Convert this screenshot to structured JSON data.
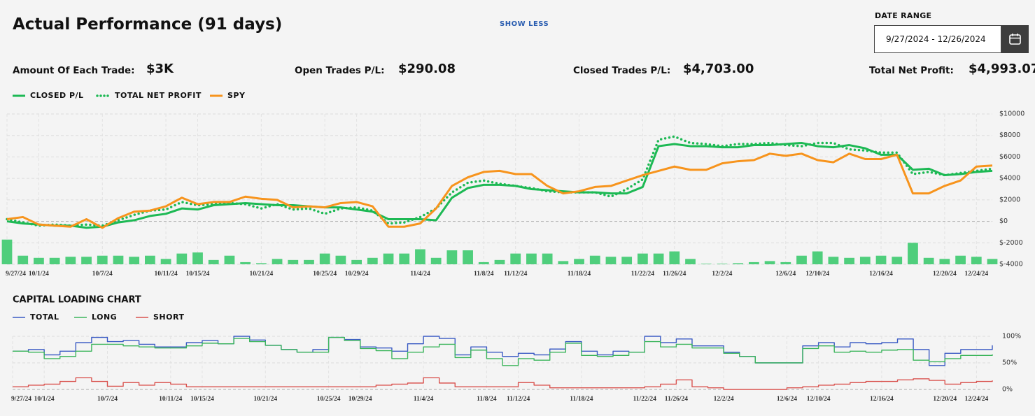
{
  "header": {
    "title": "Actual Performance (91 days)",
    "toggle": "SHOW LESS",
    "date_range_label": "DATE RANGE",
    "date_range": "9/27/2024 - 12/26/2024"
  },
  "stats": [
    {
      "label": "Amount Of Each Trade:",
      "value": "$3K"
    },
    {
      "label": "Open Trades P/L:",
      "value": "$290.08"
    },
    {
      "label": "Closed Trades P/L:",
      "value": "$4,703.00"
    },
    {
      "label": "Total Net Profit:",
      "value": "$4,993.07"
    }
  ],
  "chart_data": [
    {
      "type": "line",
      "categories": [
        "9/27/24",
        null,
        "10/1/24",
        null,
        null,
        null,
        "10/7/24",
        null,
        null,
        null,
        "10/11/24",
        null,
        "10/15/24",
        null,
        null,
        null,
        "10/21/24",
        null,
        null,
        null,
        "10/25/24",
        null,
        "10/29/24",
        null,
        null,
        null,
        "11/4/24",
        null,
        null,
        null,
        "11/8/24",
        null,
        "11/12/24",
        null,
        null,
        null,
        "11/18/24",
        null,
        null,
        null,
        "11/22/24",
        null,
        "11/26/24",
        null,
        null,
        "12/2/24",
        null,
        null,
        null,
        "12/6/24",
        null,
        "12/10/24",
        null,
        null,
        null,
        "12/16/24",
        null,
        null,
        null,
        "12/20/24",
        null,
        "12/24/24",
        null
      ],
      "series": [
        {
          "name": "CLOSED P/L",
          "color": "#1db954",
          "values": [
            0,
            -200,
            -300,
            -400,
            -400,
            -600,
            -500,
            -100,
            100,
            500,
            700,
            1200,
            1100,
            1500,
            1600,
            1700,
            1600,
            1500,
            1500,
            1400,
            1300,
            1300,
            1100,
            900,
            200,
            200,
            200,
            100,
            2200,
            3100,
            3400,
            3400,
            3300,
            3000,
            2900,
            2800,
            2700,
            2700,
            2600,
            2600,
            3200,
            7000,
            7200,
            7000,
            7000,
            6900,
            6900,
            7100,
            7100,
            7200,
            7300,
            7000,
            6900,
            7100,
            6800,
            6200,
            6200,
            4800,
            4900,
            4300,
            4400,
            4600,
            4700
          ]
        },
        {
          "name": "TOTAL NET PROFIT",
          "color": "#1db954",
          "dash": "dotted",
          "values": [
            200,
            -100,
            -400,
            -300,
            -400,
            -300,
            -400,
            100,
            600,
            1000,
            1100,
            1800,
            1500,
            1600,
            1700,
            1600,
            1200,
            1600,
            1100,
            1200,
            700,
            1200,
            1300,
            1000,
            -200,
            -100,
            400,
            1200,
            2700,
            3600,
            3800,
            3500,
            3300,
            3100,
            2800,
            2700,
            2700,
            2700,
            2300,
            3000,
            3900,
            7600,
            7900,
            7300,
            7200,
            7000,
            7200,
            7200,
            7300,
            7100,
            7000,
            7300,
            7300,
            6700,
            6600,
            6400,
            6400,
            4400,
            4600,
            4300,
            4500,
            4700,
            4900
          ]
        },
        {
          "name": "SPY",
          "color": "#f7941d",
          "values": [
            200,
            400,
            -300,
            -400,
            -500,
            200,
            -600,
            300,
            900,
            1000,
            1400,
            2200,
            1600,
            1800,
            1800,
            2300,
            2100,
            2000,
            1300,
            1400,
            1300,
            1700,
            1800,
            1400,
            -500,
            -500,
            -200,
            1200,
            3300,
            4100,
            4600,
            4700,
            4400,
            4400,
            3300,
            2600,
            2800,
            3200,
            3300,
            3800,
            4300,
            4700,
            5100,
            4800,
            4800,
            5400,
            5600,
            5700,
            6300,
            6100,
            6300,
            5700,
            5500,
            6300,
            5800,
            5800,
            6200,
            2600,
            2600,
            3300,
            3800,
            5100,
            5200
          ]
        },
        {
          "type": "bar",
          "color": "#4fce7c",
          "values": [
            -1700,
            -3200,
            -3400,
            -3400,
            -3300,
            -3300,
            -3200,
            -3200,
            -3300,
            -3200,
            -3500,
            -3000,
            -2900,
            -3600,
            -3200,
            -3800,
            -3900,
            -3500,
            -3600,
            -3600,
            -3000,
            -3200,
            -3600,
            -3400,
            -3000,
            -3000,
            -2600,
            -3400,
            -2700,
            -2700,
            -3800,
            -3600,
            -3000,
            -3000,
            -3000,
            -3700,
            -3500,
            -3200,
            -3300,
            -3300,
            -3000,
            -3000,
            -2800,
            -3500,
            -3950,
            -3950,
            -3900,
            -3800,
            -3700,
            -3800,
            -3200,
            -2800,
            -3300,
            -3400,
            -3300,
            -3200,
            -3300,
            -2000,
            -3400,
            -3500,
            -3200,
            -3300,
            -3500
          ]
        }
      ],
      "ylim": [
        -4000,
        10000
      ],
      "yticks": [
        {
          "value": 10000,
          "label": "$10000"
        },
        {
          "value": 8000,
          "label": "$8000"
        },
        {
          "value": 6000,
          "label": "$6000"
        },
        {
          "value": 4000,
          "label": "$4000"
        },
        {
          "value": 2000,
          "label": "$2000"
        },
        {
          "value": 0,
          "label": "$0"
        },
        {
          "value": -2000,
          "label": "$-2000"
        },
        {
          "value": -4000,
          "label": "$-4000"
        }
      ],
      "grid": true
    },
    {
      "type": "line",
      "step": true,
      "title": "CAPITAL LOADING CHART",
      "categories": [
        "9/27/24",
        null,
        "10/1/24",
        null,
        null,
        null,
        "10/7/24",
        null,
        null,
        null,
        "10/11/24",
        null,
        "10/15/24",
        null,
        null,
        null,
        "10/21/24",
        null,
        null,
        null,
        "10/25/24",
        null,
        "10/29/24",
        null,
        null,
        null,
        "11/4/24",
        null,
        null,
        null,
        "11/8/24",
        null,
        "11/12/24",
        null,
        null,
        null,
        "11/18/24",
        null,
        null,
        null,
        "11/22/24",
        null,
        "11/26/24",
        null,
        null,
        "12/2/24",
        null,
        null,
        null,
        "12/6/24",
        null,
        "12/10/24",
        null,
        null,
        null,
        "12/16/24",
        null,
        null,
        null,
        "12/20/24",
        null,
        "12/24/24",
        null
      ],
      "series": [
        {
          "name": "TOTAL",
          "color": "#3b5bc4",
          "values": [
            72,
            75,
            65,
            72,
            88,
            98,
            90,
            92,
            85,
            80,
            80,
            88,
            92,
            86,
            100,
            93,
            83,
            75,
            70,
            75,
            98,
            94,
            80,
            78,
            72,
            86,
            100,
            96,
            65,
            80,
            70,
            62,
            68,
            65,
            76,
            90,
            72,
            65,
            72,
            70,
            100,
            88,
            95,
            82,
            82,
            70,
            62,
            50,
            50,
            50,
            82,
            88,
            80,
            88,
            86,
            88,
            95,
            75,
            45,
            68,
            75,
            75,
            83
          ]
        },
        {
          "name": "LONG",
          "color": "#3cb55c",
          "values": [
            72,
            70,
            58,
            62,
            72,
            85,
            85,
            82,
            80,
            78,
            78,
            82,
            87,
            86,
            96,
            90,
            83,
            75,
            70,
            70,
            98,
            92,
            77,
            73,
            58,
            70,
            80,
            85,
            60,
            74,
            58,
            45,
            58,
            55,
            70,
            87,
            64,
            62,
            64,
            70,
            90,
            80,
            85,
            78,
            78,
            68,
            62,
            50,
            50,
            50,
            77,
            82,
            70,
            72,
            70,
            74,
            75,
            55,
            52,
            58,
            64,
            64,
            66
          ]
        },
        {
          "name": "SHORT",
          "color": "#d9534f",
          "values": [
            5,
            8,
            10,
            15,
            22,
            15,
            6,
            13,
            8,
            13,
            10,
            5,
            5,
            5,
            5,
            5,
            5,
            5,
            5,
            5,
            5,
            5,
            5,
            8,
            10,
            12,
            22,
            12,
            5,
            5,
            5,
            5,
            13,
            8,
            3,
            3,
            3,
            3,
            3,
            3,
            5,
            10,
            18,
            5,
            3,
            0,
            0,
            0,
            0,
            3,
            5,
            8,
            10,
            13,
            15,
            15,
            18,
            20,
            17,
            10,
            13,
            15,
            17
          ]
        }
      ],
      "ylim": [
        0,
        100
      ],
      "yticks": [
        {
          "value": 100,
          "label": "100%"
        },
        {
          "value": 50,
          "label": "50%"
        },
        {
          "value": 0,
          "label": "0%"
        }
      ],
      "grid": true
    }
  ]
}
